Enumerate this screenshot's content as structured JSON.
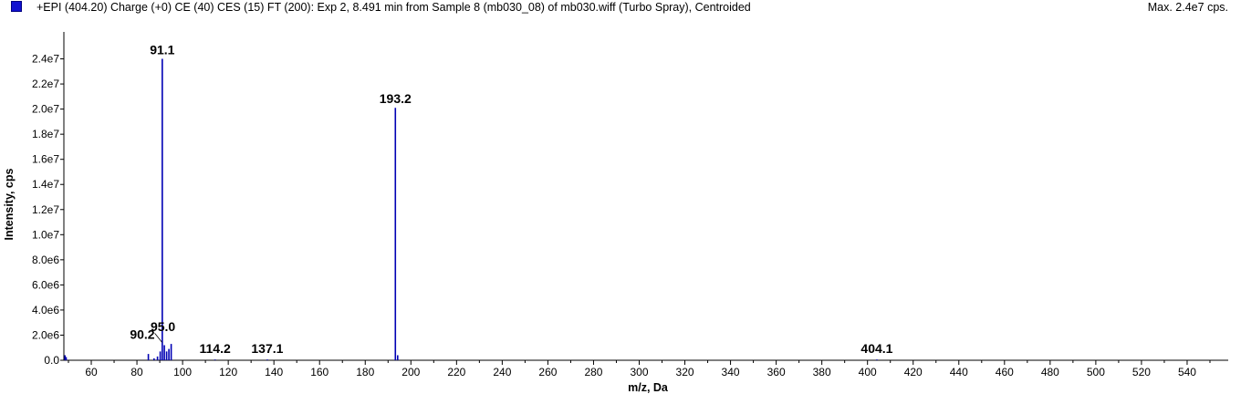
{
  "header": {
    "title": "+EPI (404.20) Charge (+0) CE (40) CES (15) FT (200): Exp 2, 8.491 min from Sample 8 (mb030_08) of mb030.wiff (Turbo Spray), Centroided",
    "max_label": "Max. 2.4e7 cps."
  },
  "colors": {
    "series": "#0000b4",
    "legend": "#1010d0"
  },
  "chart_data": {
    "type": "bar",
    "xlabel": "m/z, Da",
    "ylabel": "Intensity, cps",
    "xlim": [
      48,
      558
    ],
    "ylim": [
      0,
      26000000
    ],
    "xticks": [
      60,
      80,
      100,
      120,
      140,
      160,
      180,
      200,
      220,
      240,
      260,
      280,
      300,
      320,
      340,
      360,
      380,
      400,
      420,
      440,
      460,
      480,
      500,
      520,
      540
    ],
    "yticks": [
      0,
      2000000,
      4000000,
      6000000,
      8000000,
      10000000,
      12000000,
      14000000,
      16000000,
      18000000,
      20000000,
      22000000,
      24000000
    ],
    "yticklabels": [
      "0.0",
      "2.0e6",
      "4.0e6",
      "6.0e6",
      "8.0e6",
      "1.0e7",
      "1.2e7",
      "1.4e7",
      "1.6e7",
      "1.8e7",
      "2.0e7",
      "2.2e7",
      "2.4e7"
    ],
    "peaks": [
      {
        "mz": 48.5,
        "intensity": 400000
      },
      {
        "mz": 49.0,
        "intensity": 250000
      },
      {
        "mz": 85.0,
        "intensity": 500000
      },
      {
        "mz": 87.5,
        "intensity": 150000
      },
      {
        "mz": 89.0,
        "intensity": 300000
      },
      {
        "mz": 90.2,
        "intensity": 700000
      },
      {
        "mz": 91.1,
        "intensity": 24000000
      },
      {
        "mz": 92.0,
        "intensity": 1200000
      },
      {
        "mz": 93.0,
        "intensity": 700000
      },
      {
        "mz": 94.0,
        "intensity": 900000
      },
      {
        "mz": 95.0,
        "intensity": 1300000
      },
      {
        "mz": 114.2,
        "intensity": 60000
      },
      {
        "mz": 137.1,
        "intensity": 60000
      },
      {
        "mz": 193.2,
        "intensity": 20100000
      },
      {
        "mz": 194.2,
        "intensity": 400000
      },
      {
        "mz": 404.1,
        "intensity": 60000
      }
    ],
    "labels": [
      {
        "text": "91.1",
        "mz": 91.1,
        "intensity": 24000000
      },
      {
        "text": "193.2",
        "mz": 193.2,
        "intensity": 20100000
      },
      {
        "text": "90.2",
        "mz": 90.2,
        "intensity": 700000
      },
      {
        "text": "95.0",
        "mz": 95.0,
        "intensity": 1300000
      },
      {
        "text": "114.2",
        "mz": 114.2,
        "intensity": 60000
      },
      {
        "text": "137.1",
        "mz": 137.1,
        "intensity": 60000
      },
      {
        "text": "404.1",
        "mz": 404.1,
        "intensity": 60000
      }
    ]
  }
}
